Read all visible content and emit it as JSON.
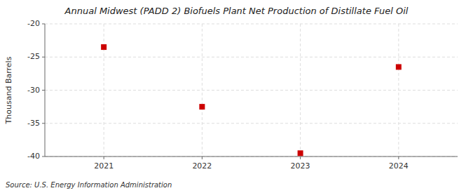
{
  "chart_data": {
    "type": "scatter",
    "title": "Annual Midwest (PADD 2) Biofuels Plant Net Production of Distillate Fuel Oil",
    "ylabel": "Thousand Barrels",
    "source": "Source: U.S. Energy Information Administration",
    "x": [
      2021,
      2022,
      2023,
      2024
    ],
    "values": [
      -23.5,
      -32.5,
      -39.5,
      -26.5
    ],
    "xlim": [
      2020.4,
      2024.6
    ],
    "xticks": [
      2021,
      2022,
      2023,
      2024
    ],
    "ylim": [
      -40,
      -20
    ],
    "yticks": [
      -40,
      -35,
      -30,
      -25,
      -20
    ],
    "color": "#cc0000",
    "marker": "square",
    "grid": true
  }
}
